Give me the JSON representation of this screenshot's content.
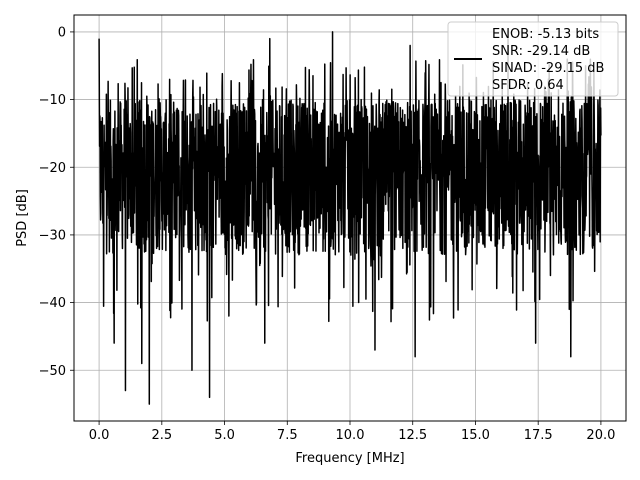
{
  "chart_data": {
    "type": "line",
    "title": "",
    "xlabel": "Frequency [MHz]",
    "ylabel": "PSD [dB]",
    "xlim": [
      -1,
      21
    ],
    "ylim": [
      -57.5,
      2.5
    ],
    "grid": true,
    "x_ticks": [
      0.0,
      2.5,
      5.0,
      7.5,
      10.0,
      12.5,
      15.0,
      17.5,
      20.0
    ],
    "x_tick_labels": [
      "0.0",
      "2.5",
      "5.0",
      "7.5",
      "10.0",
      "12.5",
      "15.0",
      "17.5",
      "20.0"
    ],
    "y_ticks": [
      0,
      -10,
      -20,
      -30,
      -40,
      -50
    ],
    "y_tick_labels": [
      "0",
      "−10",
      "−20",
      "−30",
      "−40",
      "−50"
    ],
    "legend": {
      "placement": "top-right",
      "entries": [
        "ENOB: -5.13 bits",
        "SNR: -29.14 dB",
        "SINAD: -29.15 dB",
        "SFDR: 0.64"
      ]
    },
    "series": [
      {
        "color": "#000000",
        "x_range": [
          0,
          20
        ],
        "points": 2000,
        "band_top_db": -10,
        "band_bottom_db": -33,
        "notable_peaks": [
          {
            "x": 0.0,
            "y": -1
          },
          {
            "x": 6.8,
            "y": -1
          },
          {
            "x": 9.3,
            "y": 0
          },
          {
            "x": 12.4,
            "y": -2
          },
          {
            "x": 16.3,
            "y": -1
          }
        ],
        "notable_dips": [
          {
            "x": 0.6,
            "y": -46
          },
          {
            "x": 1.05,
            "y": -53
          },
          {
            "x": 1.7,
            "y": -49
          },
          {
            "x": 2.0,
            "y": -55
          },
          {
            "x": 3.7,
            "y": -50
          },
          {
            "x": 4.4,
            "y": -54
          },
          {
            "x": 6.6,
            "y": -46
          },
          {
            "x": 11.0,
            "y": -47
          },
          {
            "x": 12.6,
            "y": -48
          },
          {
            "x": 17.4,
            "y": -46
          },
          {
            "x": 18.8,
            "y": -48
          }
        ]
      }
    ]
  }
}
